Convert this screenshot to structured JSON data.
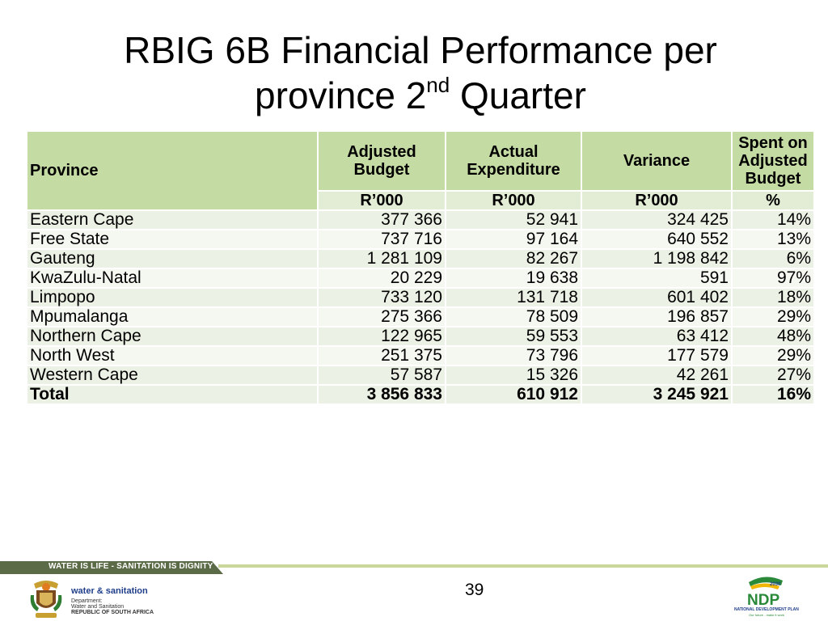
{
  "title": {
    "line1": "RBIG 6B Financial Performance per",
    "line2_pre": "province 2",
    "line2_sup": "nd",
    "line2_post": " Quarter"
  },
  "table": {
    "headers": {
      "province": "Province",
      "adjusted_budget": "Adjusted Budget",
      "actual_expenditure": "Actual Expenditure",
      "variance": "Variance",
      "spent": "Spent on Adjusted Budget"
    },
    "units": {
      "adjusted_budget": "R’000",
      "actual_expenditure": "R’000",
      "variance": "R’000",
      "spent": "%"
    },
    "rows": [
      {
        "province": "Eastern Cape",
        "budget": "377 366",
        "expenditure": "52 941",
        "variance": "324 425",
        "spent": "14%"
      },
      {
        "province": "Free State",
        "budget": "737 716",
        "expenditure": "97 164",
        "variance": "640 552",
        "spent": "13%"
      },
      {
        "province": "Gauteng",
        "budget": "1 281 109",
        "expenditure": "82 267",
        "variance": "1 198 842",
        "spent": "6%"
      },
      {
        "province": "KwaZulu-Natal",
        "budget": "20 229",
        "expenditure": "19 638",
        "variance": "591",
        "spent": "97%"
      },
      {
        "province": "Limpopo",
        "budget": "733 120",
        "expenditure": "131 718",
        "variance": "601 402",
        "spent": "18%"
      },
      {
        "province": "Mpumalanga",
        "budget": "275 366",
        "expenditure": "78 509",
        "variance": "196 857",
        "spent": "29%"
      },
      {
        "province": "Northern Cape",
        "budget": "122 965",
        "expenditure": "59 553",
        "variance": "63 412",
        "spent": "48%"
      },
      {
        "province": "North West",
        "budget": "251 375",
        "expenditure": "73 796",
        "variance": "177 579",
        "spent": "29%"
      },
      {
        "province": "Western Cape",
        "budget": "57 587",
        "expenditure": "15 326",
        "variance": "42 261",
        "spent": "27%"
      }
    ],
    "total": {
      "province": "Total",
      "budget": "3 856 833",
      "expenditure": "610 912",
      "variance": "3 245 921",
      "spent": "16%"
    }
  },
  "footer": {
    "slogan": "WATER IS LIFE - SANITATION IS DIGNITY",
    "page_number": "39",
    "dept_brand": "water & sanitation",
    "dept_line1": "Department:",
    "dept_line2": "Water and Sanitation",
    "dept_line3": "REPUBLIC OF SOUTH AFRICA",
    "ndp_year": "2030",
    "ndp_logo": "NDP",
    "ndp_caption": "NATIONAL DEVELOPMENT PLAN",
    "ndp_tagline": "Our future - make it work"
  },
  "colors": {
    "header": "#c5dba4",
    "subheader": "#e3edd5",
    "row_odd": "#ebf1e4",
    "row_even": "#f5f8f1",
    "footer_band": "#5c6b47",
    "footer_line": "#c9d79c"
  }
}
